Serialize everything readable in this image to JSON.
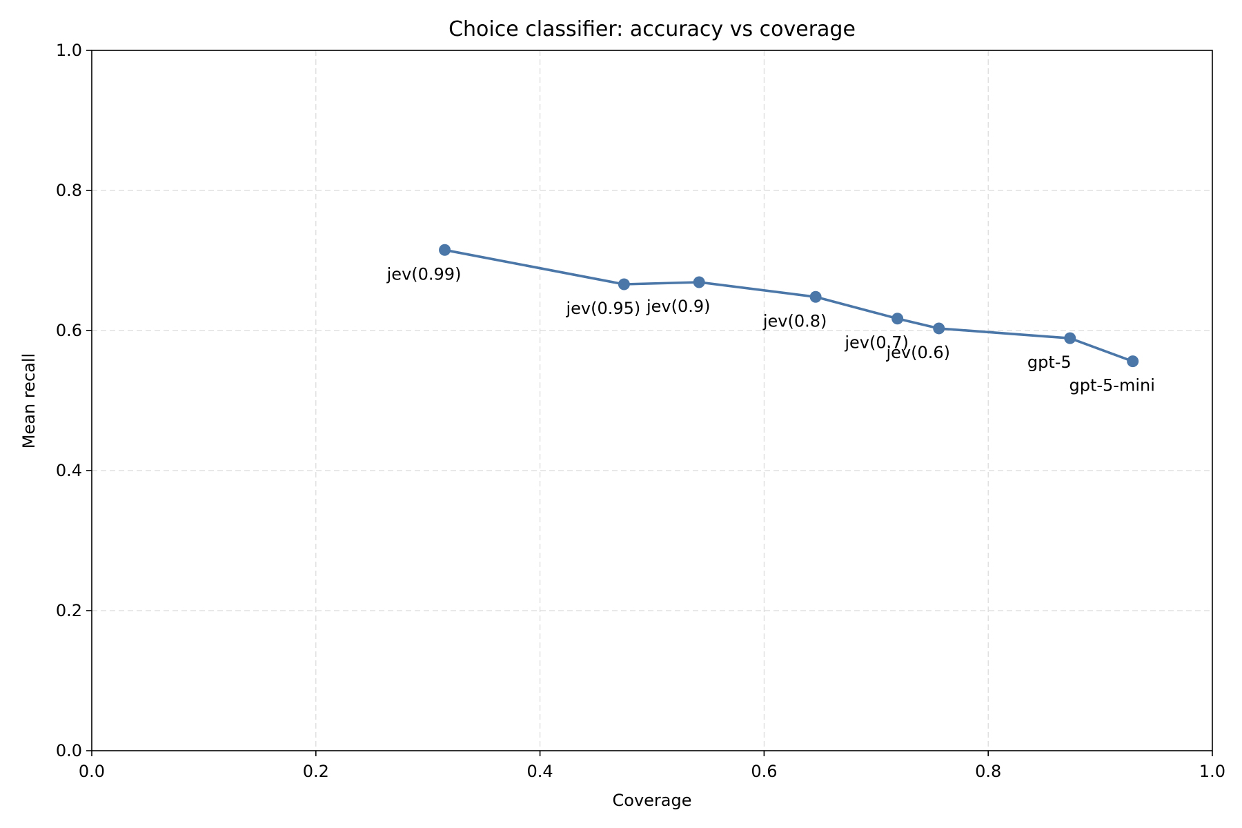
{
  "chart_data": {
    "type": "line",
    "title": "Choice classifier: accuracy vs coverage",
    "xlabel": "Coverage",
    "ylabel": "Mean recall",
    "xlim": [
      0.0,
      1.0
    ],
    "ylim": [
      0.0,
      1.0
    ],
    "xticks": [
      0.0,
      0.2,
      0.4,
      0.6,
      0.8,
      1.0
    ],
    "yticks": [
      0.0,
      0.2,
      0.4,
      0.6,
      0.8,
      1.0
    ],
    "xtick_labels": [
      "0.0",
      "0.2",
      "0.4",
      "0.6",
      "0.8",
      "1.0"
    ],
    "ytick_labels": [
      "0.0",
      "0.2",
      "0.4",
      "0.6",
      "0.8",
      "1.0"
    ],
    "grid": true,
    "color": "#4a76a8",
    "series": [
      {
        "points": [
          {
            "label": "jev(0.99)",
            "x": 0.315,
            "y": 0.715
          },
          {
            "label": "jev(0.95)",
            "x": 0.475,
            "y": 0.666
          },
          {
            "label": "jev(0.9)",
            "x": 0.542,
            "y": 0.669
          },
          {
            "label": "jev(0.8)",
            "x": 0.646,
            "y": 0.648
          },
          {
            "label": "jev(0.7)",
            "x": 0.719,
            "y": 0.617
          },
          {
            "label": "jev(0.6)",
            "x": 0.756,
            "y": 0.603
          },
          {
            "label": "gpt-5",
            "x": 0.873,
            "y": 0.589
          },
          {
            "label": "gpt-5-mini",
            "x": 0.929,
            "y": 0.556
          }
        ]
      }
    ]
  }
}
